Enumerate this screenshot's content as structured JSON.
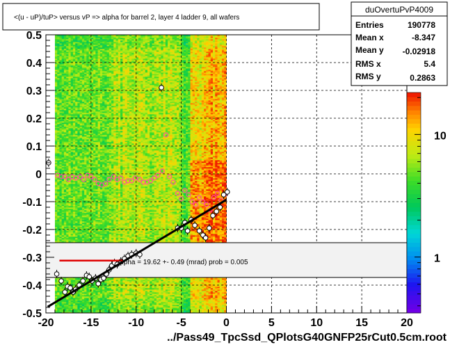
{
  "chart_data": {
    "type": "heatmap",
    "title": "<(u - uP)/tuP> versus   vP => alpha for barrel 2, layer 4 ladder 9, all wafers",
    "xlabel": "../Pass49_TpcSsd_QPlotsG40GNFP25rCut0.5cm.root",
    "ylabel": "",
    "xlim": [
      -20,
      20
    ],
    "ylim": [
      -0.5,
      0.5
    ],
    "x_ticks": [
      "-20",
      "-15",
      "-10",
      "-5",
      "0",
      "5",
      "10",
      "15",
      "20"
    ],
    "x_tick_values": [
      -20,
      -15,
      -10,
      -5,
      0,
      5,
      10,
      15,
      20
    ],
    "y_ticks": [
      "-0.5",
      "-0.4",
      "-0.3",
      "-0.2",
      "-0.1",
      "0",
      "0.1",
      "0.2",
      "0.3",
      "0.4",
      "0.5"
    ],
    "y_tick_values": [
      -0.5,
      -0.4,
      -0.3,
      -0.2,
      -0.1,
      0,
      0.1,
      0.2,
      0.3,
      0.4,
      0.5
    ],
    "grid": true,
    "log_z": true,
    "z_ticks": [
      "1",
      "10"
    ],
    "z_tick_values": [
      1,
      10
    ],
    "z_range": [
      0.35,
      22
    ],
    "heatmap_x_range": [
      -19,
      0
    ],
    "fit_line": {
      "x": [
        -19.8,
        0
      ],
      "y": [
        -0.478,
        -0.093
      ]
    },
    "fit_segment": {
      "x": [
        -18.5,
        -11.5
      ],
      "y": [
        -0.312,
        -0.312
      ]
    },
    "profile_black": {
      "x": [
        -19.7,
        -18.8,
        -18.3,
        -17.9,
        -17.6,
        -17.3,
        -17.0,
        -16.7,
        -16.3,
        -15.9,
        -15.5,
        -15.2,
        -14.9,
        -14.5,
        -14.2,
        -13.9,
        -13.6,
        -13.3,
        -13.0,
        -12.7,
        -12.4,
        -12.1,
        -11.7,
        -11.3,
        -10.9,
        -10.5,
        -10.0,
        -9.6,
        -7.2,
        -5.4,
        -5.0,
        -4.6,
        -4.3,
        -3.9,
        -3.5,
        -3.0,
        -2.6,
        -2.3,
        -1.9,
        -1.5,
        -1.1,
        -0.7,
        -0.3,
        0.1
      ],
      "y": [
        0.04,
        -0.36,
        -0.385,
        -0.425,
        -0.405,
        -0.41,
        -0.425,
        -0.415,
        -0.4,
        -0.385,
        -0.365,
        -0.37,
        -0.385,
        -0.375,
        -0.395,
        -0.38,
        -0.375,
        -0.36,
        -0.345,
        -0.33,
        -0.32,
        -0.325,
        -0.315,
        -0.305,
        -0.295,
        -0.29,
        -0.285,
        -0.29,
        0.31,
        -0.195,
        -0.195,
        -0.175,
        -0.205,
        -0.165,
        -0.185,
        -0.205,
        -0.22,
        -0.23,
        -0.195,
        -0.15,
        -0.135,
        -0.12,
        -0.075,
        -0.065
      ]
    },
    "profile_pink": {
      "x": [
        -18.7,
        -18.3,
        -17.9,
        -17.5,
        -17.1,
        -16.7,
        -16.2,
        -15.8,
        -15.4,
        -15.0,
        -14.6,
        -14.2,
        -13.8,
        -13.4,
        -13.0,
        -12.5,
        -12.1,
        -11.7,
        -11.3,
        -10.9,
        -10.5,
        -10.1,
        -9.6,
        -9.2,
        -8.8,
        -8.4,
        -8.0,
        -7.6,
        -7.1,
        -6.7,
        -6.3,
        -5.9,
        -5.4,
        -5.0,
        -4.6,
        -4.2,
        -3.8,
        -3.4,
        -3.0,
        -2.6,
        -2.2,
        -1.8,
        -1.4,
        -1.0,
        -0.6,
        -0.2
      ],
      "y": [
        -0.005,
        -0.01,
        -0.01,
        -0.02,
        -0.01,
        -0.015,
        -0.01,
        -0.02,
        -0.005,
        -0.01,
        -0.02,
        -0.035,
        -0.04,
        -0.035,
        -0.02,
        -0.01,
        -0.02,
        -0.015,
        -0.03,
        -0.025,
        -0.025,
        -0.015,
        -0.02,
        -0.03,
        -0.03,
        -0.025,
        -0.015,
        -0.005,
        0.01,
        0.14,
        -0.01,
        -0.03,
        -0.07,
        -0.09,
        -0.06,
        -0.075,
        -0.1,
        -0.11,
        -0.085,
        -0.1,
        -0.11,
        -0.13,
        -0.085,
        -0.07,
        -0.095,
        -0.075
      ]
    },
    "fit_label": "alpha =    19.62 +-  0.49 (mrad) prob = 0.005",
    "stats": {
      "name": "duOvertuPvP4009",
      "rows": [
        {
          "label": "Entries",
          "value": "190778"
        },
        {
          "label": "Mean x",
          "value": "-8.347"
        },
        {
          "label": "Mean y",
          "value": "-0.02918"
        },
        {
          "label": "RMS x",
          "value": "5.4"
        },
        {
          "label": "RMS y",
          "value": "0.2863"
        }
      ]
    }
  }
}
